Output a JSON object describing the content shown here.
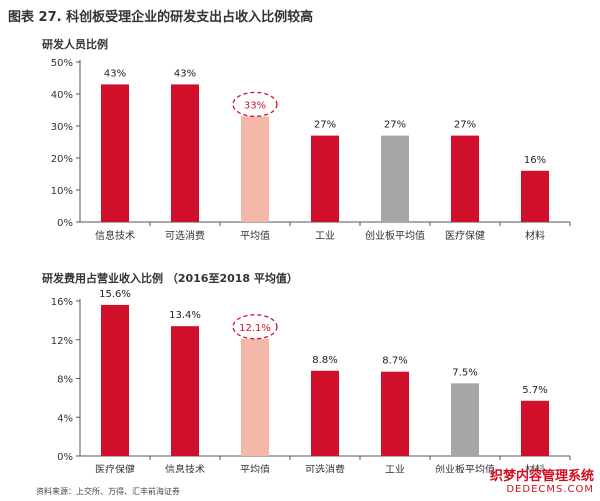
{
  "figure_title": "图表 27. 科创板受理企业的研发支出占收入比例较高",
  "chart_data": [
    {
      "type": "bar",
      "title": "研发人员比例",
      "categories": [
        "信息技术",
        "可选消费",
        "平均值",
        "工业",
        "创业板平均值",
        "医疗保健",
        "材料"
      ],
      "values": [
        43,
        43,
        33,
        27,
        27,
        27,
        16
      ],
      "value_labels": [
        "43%",
        "43%",
        "33%",
        "27%",
        "27%",
        "27%",
        "16%"
      ],
      "highlight_index": 2,
      "ylim": [
        0,
        50
      ],
      "yticks": [
        0,
        10,
        20,
        30,
        40,
        50
      ],
      "ytick_labels": [
        "0%",
        "10%",
        "20%",
        "30%",
        "40%",
        "50%"
      ],
      "grid": false,
      "colors": [
        "#d0102a",
        "#d0102a",
        "#f4b8a9",
        "#d0102a",
        "#a6a6a6",
        "#d0102a",
        "#d0102a"
      ]
    },
    {
      "type": "bar",
      "title": "研发费用占营业收入比例 （2016至2018 平均值）",
      "categories": [
        "医疗保健",
        "信息技术",
        "平均值",
        "可选消费",
        "工业",
        "创业板平均值",
        "材料"
      ],
      "values": [
        15.6,
        13.4,
        12.1,
        8.8,
        8.7,
        7.5,
        5.7
      ],
      "value_labels": [
        "15.6%",
        "13.4%",
        "12.1%",
        "8.8%",
        "8.7%",
        "7.5%",
        "5.7%"
      ],
      "highlight_index": 2,
      "ylim": [
        0,
        16
      ],
      "yticks": [
        0,
        4,
        8,
        12,
        16
      ],
      "ytick_labels": [
        "0%",
        "4%",
        "8%",
        "12%",
        "16%"
      ],
      "grid": false,
      "colors": [
        "#d0102a",
        "#d0102a",
        "#f4b8a9",
        "#d0102a",
        "#d0102a",
        "#a6a6a6",
        "#d0102a"
      ]
    }
  ],
  "source_note": "资料来源：上交所、万得、汇丰前海证券",
  "watermark": {
    "line1": "织梦内容管理系统",
    "line2": "DEDECMS.COM"
  },
  "colors": {
    "bar_red": "#d0102a",
    "highlight": "#f4b8a9",
    "gray": "#a6a6a6",
    "highlight_label": "#d0102a"
  }
}
